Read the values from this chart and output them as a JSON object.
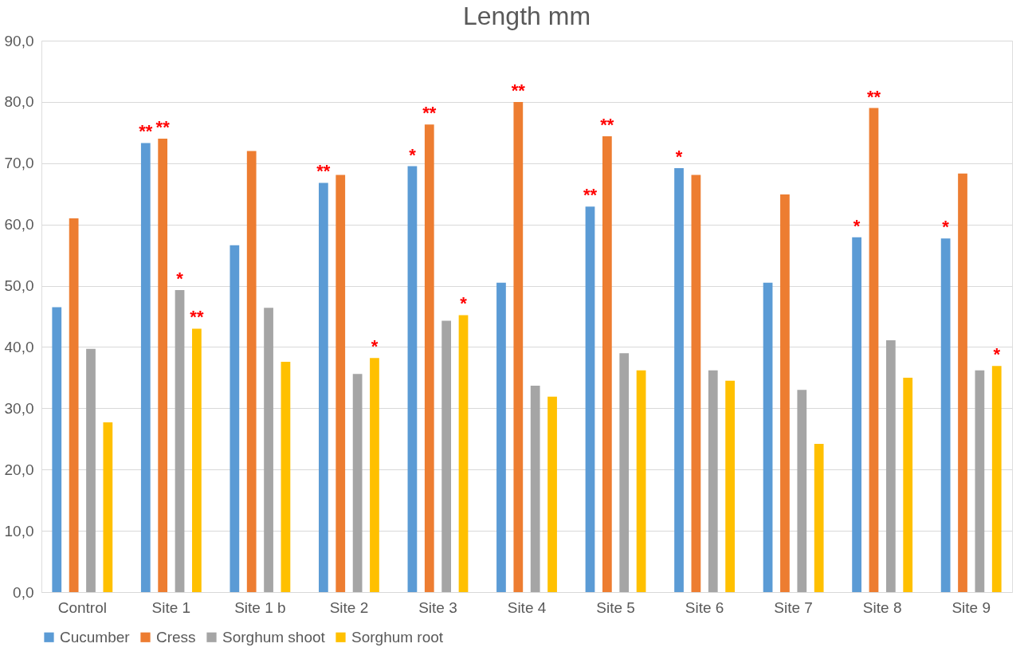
{
  "chart_data": {
    "type": "bar",
    "title": "Length mm",
    "categories": [
      "Control",
      "Site 1",
      "Site 1 b",
      "Site 2",
      "Site 3",
      "Site 4",
      "Site 5",
      "Site 6",
      "Site 7",
      "Site 8",
      "Site 9"
    ],
    "series": [
      {
        "name": "Cucumber",
        "color": "#5b9bd5",
        "values": [
          46.5,
          73.3,
          56.6,
          66.8,
          69.5,
          50.5,
          62.9,
          69.2,
          50.5,
          57.9,
          57.7
        ],
        "value_labels": [
          null,
          "**",
          null,
          "**",
          "*",
          null,
          "**",
          "*",
          null,
          "*",
          "*"
        ]
      },
      {
        "name": "Cress",
        "color": "#ed7d31",
        "values": [
          61.0,
          74.0,
          72.0,
          68.1,
          76.3,
          80.0,
          74.4,
          68.1,
          64.9,
          79.0,
          68.3
        ],
        "value_labels": [
          null,
          "**",
          null,
          null,
          "**",
          "**",
          "**",
          null,
          null,
          "**",
          null
        ]
      },
      {
        "name": "Sorghum shoot",
        "color": "#a5a5a5",
        "values": [
          39.7,
          49.3,
          46.4,
          35.6,
          44.3,
          33.7,
          39.0,
          36.2,
          33.0,
          41.1,
          36.2
        ],
        "value_labels": [
          null,
          "*",
          null,
          null,
          null,
          null,
          null,
          null,
          null,
          null,
          null
        ]
      },
      {
        "name": "Sorghum root",
        "color": "#ffc000",
        "values": [
          27.7,
          43.0,
          37.6,
          38.2,
          45.2,
          31.9,
          36.2,
          34.5,
          24.2,
          35.0,
          36.9
        ],
        "value_labels": [
          null,
          "**",
          null,
          "*",
          "*",
          null,
          null,
          null,
          null,
          null,
          "*"
        ]
      }
    ],
    "ylim": [
      0,
      90
    ],
    "yticks": [
      {
        "value": 0,
        "label": "0,0"
      },
      {
        "value": 10,
        "label": "10,0"
      },
      {
        "value": 20,
        "label": "20,0"
      },
      {
        "value": 30,
        "label": "30,0"
      },
      {
        "value": 40,
        "label": "40,0"
      },
      {
        "value": 50,
        "label": "50,0"
      },
      {
        "value": 60,
        "label": "60,0"
      },
      {
        "value": 70,
        "label": "70,0"
      },
      {
        "value": 80,
        "label": "80,0"
      },
      {
        "value": 90,
        "label": "90,0"
      }
    ],
    "grid": "y",
    "legend": "bottom"
  }
}
